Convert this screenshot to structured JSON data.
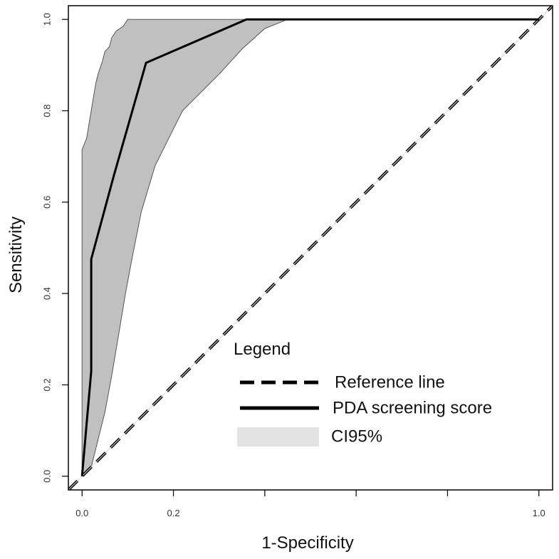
{
  "chart_data": {
    "type": "line",
    "title": "",
    "xlabel": "1-Specificity",
    "ylabel": "Sensitivity",
    "xlim": [
      -0.03,
      1.03
    ],
    "ylim": [
      -0.03,
      1.03
    ],
    "x_ticks": [
      0.0,
      0.2,
      0.4,
      0.6,
      0.8,
      1.0
    ],
    "x_tick_labels": [
      "0.0",
      "0.2",
      "",
      "",
      "",
      "1.0"
    ],
    "y_ticks": [
      0.0,
      0.2,
      0.4,
      0.6,
      0.8,
      1.0
    ],
    "y_tick_labels": [
      "0.0",
      "0.2",
      "0.4",
      "0.6",
      "0.8",
      "1.0"
    ],
    "grid": false,
    "series": [
      {
        "name": "Reference line",
        "style": "dashed",
        "color": "#000000",
        "x": [
          -0.03,
          1.03
        ],
        "y": [
          -0.03,
          1.03
        ]
      },
      {
        "name": "PDA screening score",
        "style": "solid",
        "color": "#000000",
        "x": [
          0.0,
          0.02,
          0.02,
          0.07,
          0.14,
          0.36,
          1.0
        ],
        "y": [
          0.0,
          0.23,
          0.475,
          0.66,
          0.905,
          1.0,
          1.0
        ]
      }
    ],
    "ci_band": {
      "name": "CI95%",
      "fill": "#c0c0c0",
      "upper": {
        "x": [
          0.0,
          0.0,
          0.01,
          0.02,
          0.03,
          0.035,
          0.045,
          0.05,
          0.06,
          0.065,
          0.075,
          0.09,
          0.1,
          0.14,
          0.25,
          0.35,
          0.45,
          1.0
        ],
        "y": [
          0.05,
          0.715,
          0.74,
          0.8,
          0.86,
          0.88,
          0.91,
          0.93,
          0.94,
          0.96,
          0.975,
          0.985,
          1.0,
          1.0,
          1.0,
          1.0,
          1.0,
          1.0
        ]
      },
      "lower": {
        "x": [
          0.0,
          0.02,
          0.035,
          0.05,
          0.065,
          0.08,
          0.095,
          0.11,
          0.13,
          0.16,
          0.2,
          0.22,
          0.25,
          0.3,
          0.35,
          0.4,
          0.45,
          1.0
        ],
        "y": [
          0.0,
          0.02,
          0.08,
          0.14,
          0.22,
          0.31,
          0.4,
          0.48,
          0.58,
          0.68,
          0.76,
          0.8,
          0.83,
          0.88,
          0.935,
          0.98,
          1.0,
          1.0
        ]
      }
    },
    "legend": {
      "title": "Legend",
      "placement": "bottom-right",
      "entries": [
        {
          "label": "Reference line",
          "kind": "dashed-line"
        },
        {
          "label": "PDA screening score",
          "kind": "solid-line"
        },
        {
          "label": "CI95%",
          "kind": "fill",
          "color": "#e3e3e3"
        }
      ]
    }
  }
}
